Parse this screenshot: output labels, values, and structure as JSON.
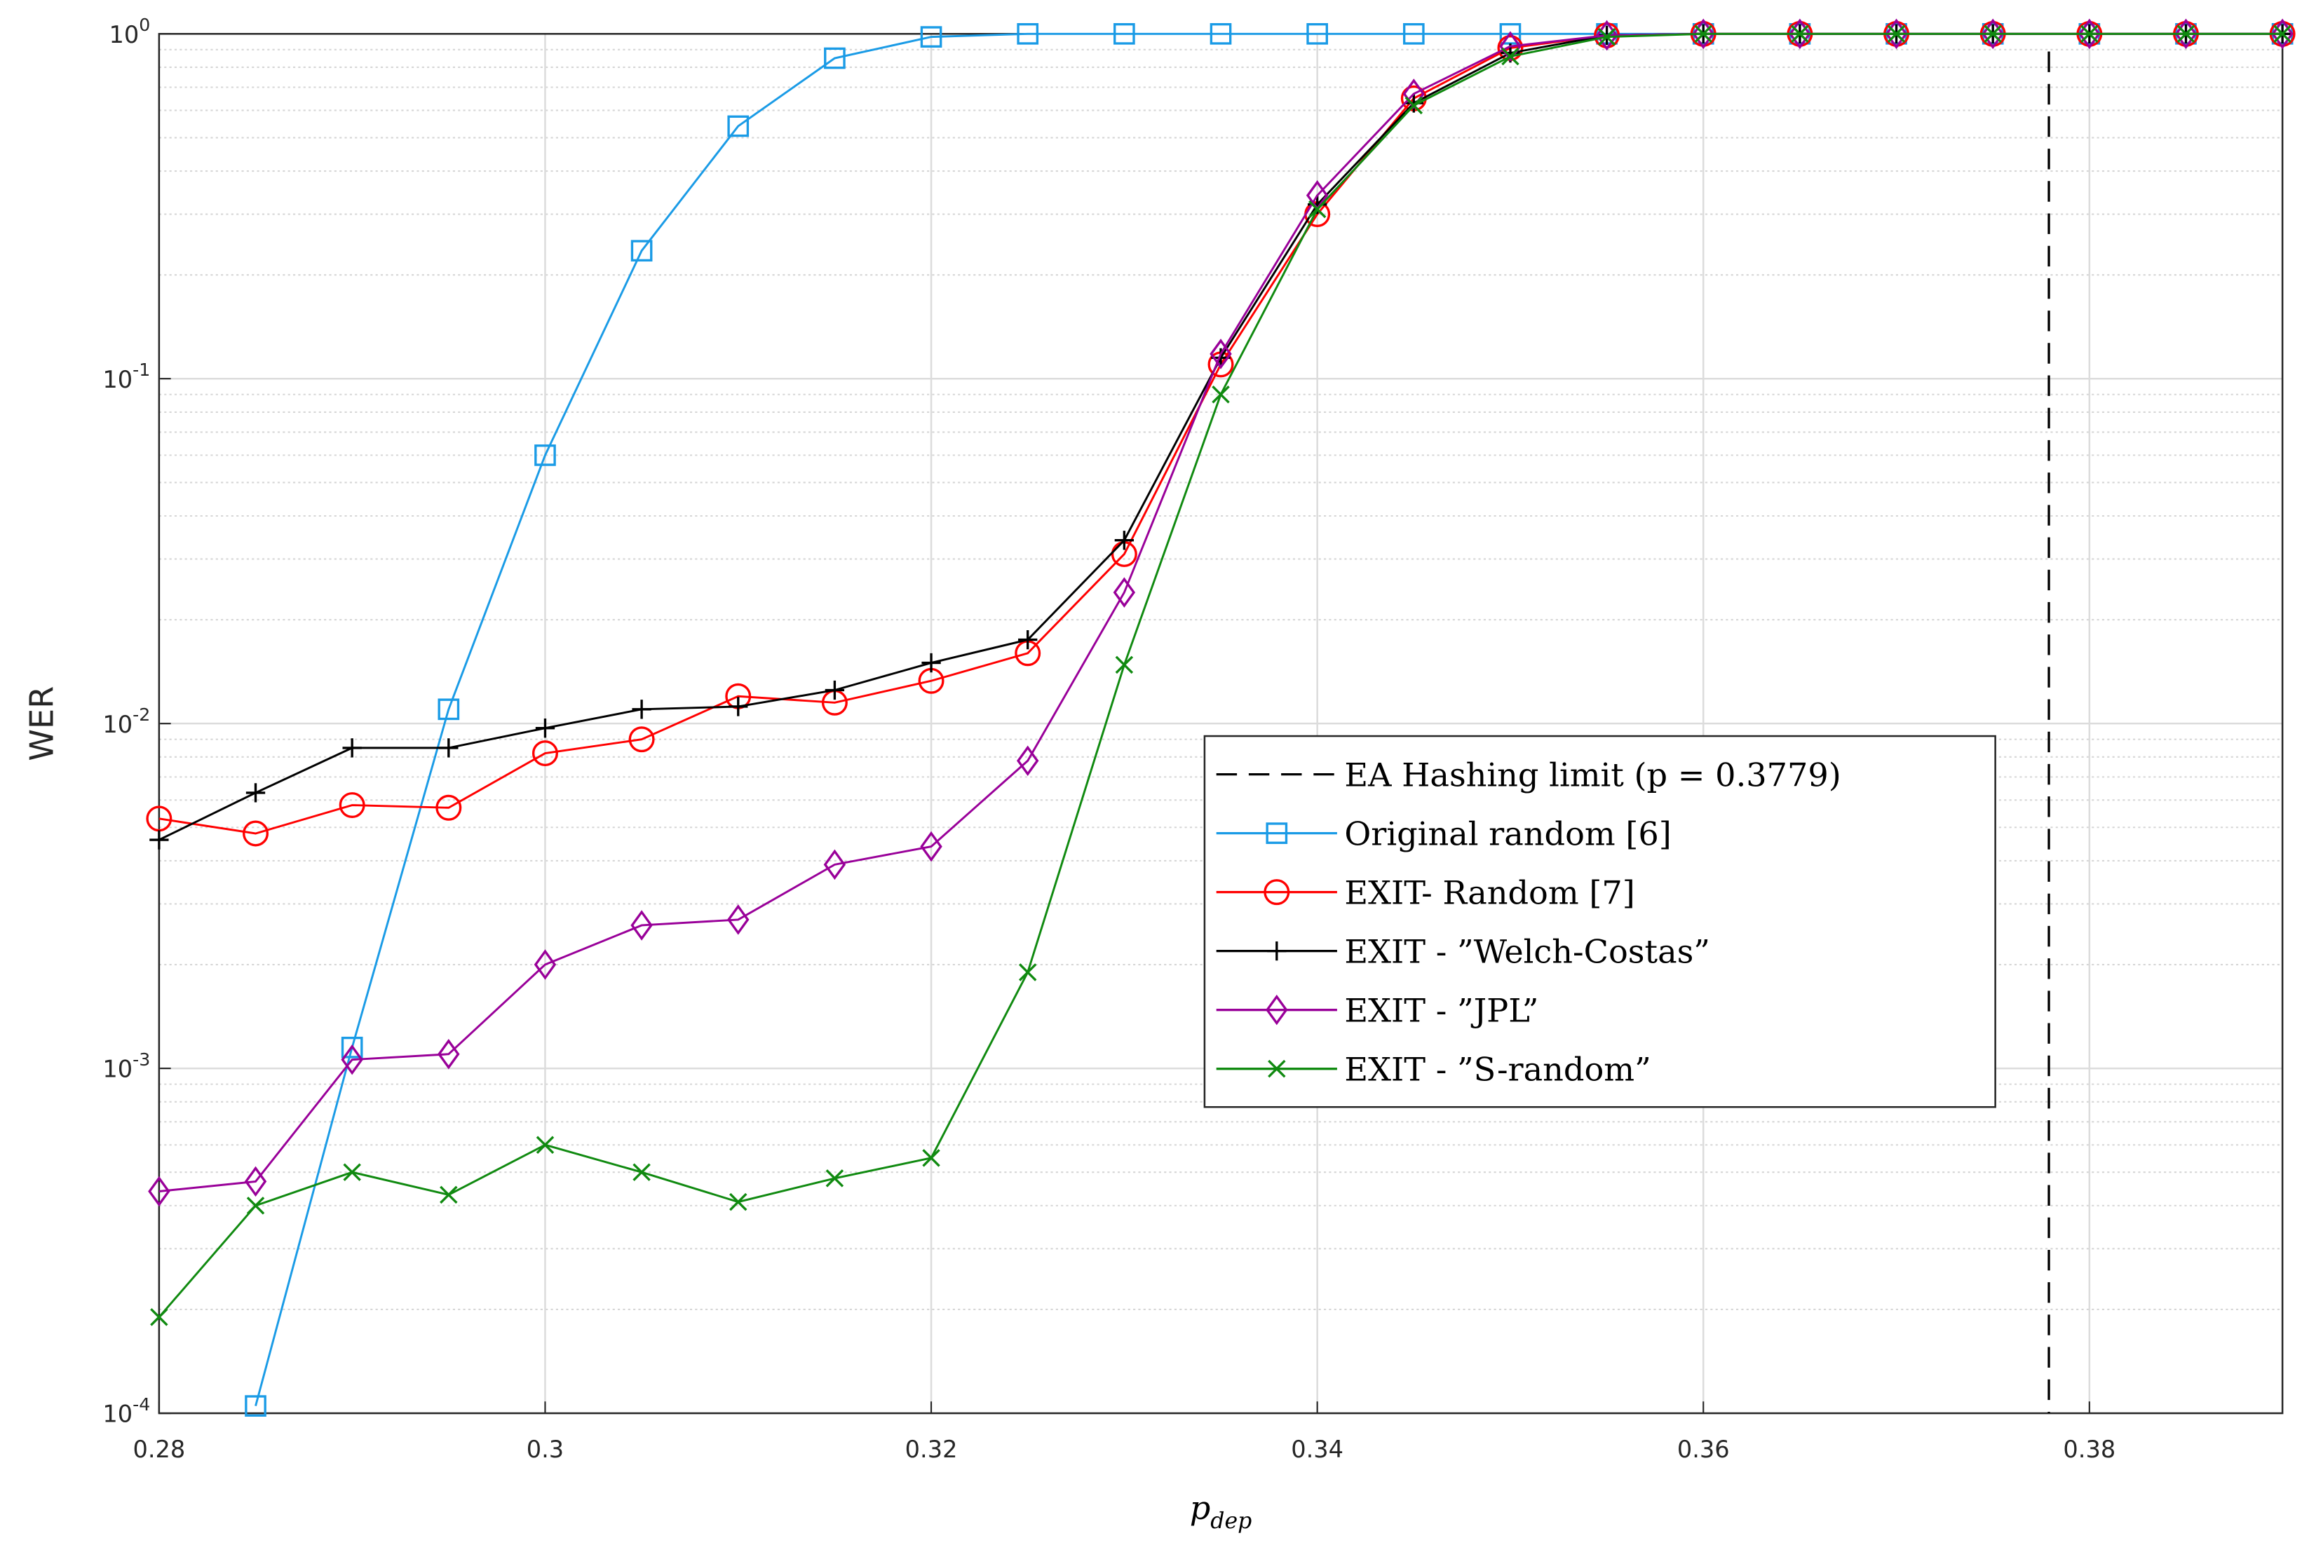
{
  "chart_data": {
    "type": "line",
    "xlabel": "p_dep",
    "ylabel": "WER",
    "x": [
      0.28,
      0.285,
      0.29,
      0.295,
      0.3,
      0.305,
      0.31,
      0.315,
      0.32,
      0.325,
      0.33,
      0.335,
      0.34,
      0.345,
      0.35,
      0.355,
      0.36,
      0.365,
      0.37,
      0.375,
      0.38,
      0.385,
      0.39
    ],
    "xlim": [
      0.28,
      0.39
    ],
    "xticks": [
      0.28,
      0.3,
      0.32,
      0.34,
      0.36,
      0.38
    ],
    "ylim": [
      0.0001,
      1
    ],
    "log_y": true,
    "yticks": [
      {
        "value": 0.0001,
        "label": "10^-4"
      },
      {
        "value": 0.001,
        "label": "10^-3"
      },
      {
        "value": 0.01,
        "label": "10^-2"
      },
      {
        "value": 0.1,
        "label": "10^-1"
      },
      {
        "value": 1,
        "label": "10^0"
      }
    ],
    "grid": true,
    "minor_grid": true,
    "legend_position": "right",
    "vline": {
      "name": "EA Hashing limit (p = 0.3779)",
      "x": 0.3779,
      "color": "#000000"
    },
    "series": [
      {
        "name": "Original random [6]",
        "color": "#1a9be6",
        "marker": "square",
        "values": [
          null,
          0.000105,
          0.00115,
          0.011,
          0.06,
          0.235,
          0.54,
          0.85,
          0.98,
          1,
          1,
          1,
          1,
          1,
          1,
          1,
          1,
          1,
          1,
          1,
          1,
          1,
          1
        ]
      },
      {
        "name": "EXIT- Random [7]",
        "color": "#ff0000",
        "marker": "circle",
        "values": [
          0.0053,
          0.0048,
          0.0058,
          0.0057,
          0.0082,
          0.009,
          0.012,
          0.0115,
          0.0133,
          0.016,
          0.031,
          0.11,
          0.3,
          0.65,
          0.91,
          0.99,
          1,
          1,
          1,
          1,
          1,
          1,
          1
        ]
      },
      {
        "name": "EXIT - ”Welch-Costas”",
        "color": "#000000",
        "marker": "plus",
        "values": [
          0.0046,
          0.0063,
          0.0085,
          0.0085,
          0.0097,
          0.011,
          0.0112,
          0.0125,
          0.015,
          0.0175,
          0.034,
          0.115,
          0.32,
          0.63,
          0.88,
          0.99,
          1,
          1,
          1,
          1,
          1,
          1,
          1
        ]
      },
      {
        "name": "EXIT - ”JPL”",
        "color": "#990099",
        "marker": "diamond",
        "values": [
          0.00044,
          0.00047,
          0.00106,
          0.0011,
          0.002,
          0.0026,
          0.0027,
          0.0039,
          0.0044,
          0.0078,
          0.024,
          0.118,
          0.34,
          0.67,
          0.92,
          0.99,
          1,
          1,
          1,
          1,
          1,
          1,
          1
        ]
      },
      {
        "name": "EXIT - ”S-random”",
        "color": "#108a10",
        "marker": "x",
        "values": [
          0.00019,
          0.0004,
          0.0005,
          0.00043,
          0.0006,
          0.0005,
          0.00041,
          0.00048,
          0.00055,
          0.0019,
          0.0148,
          0.09,
          0.31,
          0.62,
          0.86,
          0.98,
          1,
          1,
          1,
          1,
          1,
          1,
          1
        ]
      }
    ]
  }
}
